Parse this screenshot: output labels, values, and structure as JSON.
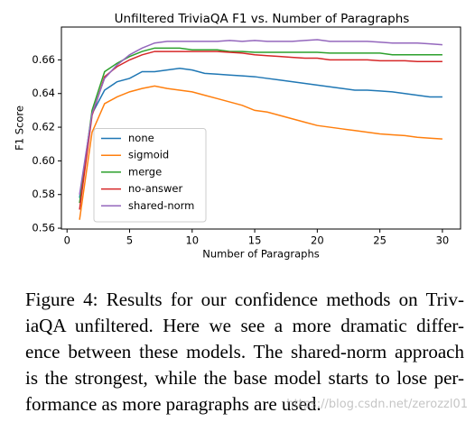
{
  "chart_data": {
    "type": "line",
    "title": "Unfiltered TriviaQA F1 vs. Number of Paragraphs",
    "x_label": "Number of Paragraphs",
    "y_label": "F1 Score",
    "x": [
      1,
      2,
      3,
      4,
      5,
      6,
      7,
      8,
      9,
      10,
      11,
      12,
      13,
      14,
      15,
      16,
      17,
      18,
      19,
      20,
      21,
      22,
      23,
      24,
      25,
      26,
      27,
      28,
      29,
      30
    ],
    "series": [
      {
        "name": "none",
        "color": "#1f77b4",
        "values": [
          0.578,
          0.628,
          0.642,
          0.647,
          0.649,
          0.653,
          0.653,
          0.654,
          0.655,
          0.654,
          0.652,
          0.6515,
          0.651,
          0.6505,
          0.65,
          0.649,
          0.648,
          0.647,
          0.646,
          0.645,
          0.644,
          0.643,
          0.642,
          0.642,
          0.6415,
          0.641,
          0.64,
          0.639,
          0.638,
          0.638
        ]
      },
      {
        "name": "sigmoid",
        "color": "#ff7f0e",
        "values": [
          0.565,
          0.617,
          0.634,
          0.638,
          0.641,
          0.643,
          0.6445,
          0.643,
          0.642,
          0.641,
          0.639,
          0.637,
          0.635,
          0.633,
          0.63,
          0.629,
          0.627,
          0.625,
          0.623,
          0.621,
          0.62,
          0.619,
          0.618,
          0.617,
          0.616,
          0.6155,
          0.615,
          0.614,
          0.6135,
          0.613
        ]
      },
      {
        "name": "merge",
        "color": "#2ca02c",
        "values": [
          0.575,
          0.63,
          0.653,
          0.658,
          0.662,
          0.665,
          0.667,
          0.667,
          0.667,
          0.666,
          0.666,
          0.666,
          0.665,
          0.665,
          0.6645,
          0.6645,
          0.6645,
          0.6645,
          0.6645,
          0.6645,
          0.664,
          0.664,
          0.664,
          0.664,
          0.664,
          0.663,
          0.663,
          0.663,
          0.663,
          0.663
        ]
      },
      {
        "name": "no-answer",
        "color": "#d62728",
        "values": [
          0.571,
          0.627,
          0.65,
          0.656,
          0.66,
          0.663,
          0.665,
          0.665,
          0.665,
          0.665,
          0.665,
          0.665,
          0.6645,
          0.664,
          0.663,
          0.6625,
          0.662,
          0.6615,
          0.661,
          0.661,
          0.66,
          0.66,
          0.66,
          0.66,
          0.6595,
          0.6595,
          0.6595,
          0.659,
          0.659,
          0.659
        ]
      },
      {
        "name": "shared-norm",
        "color": "#9467bd",
        "values": [
          0.58,
          0.628,
          0.649,
          0.657,
          0.663,
          0.667,
          0.67,
          0.671,
          0.671,
          0.671,
          0.671,
          0.671,
          0.6715,
          0.671,
          0.6715,
          0.671,
          0.671,
          0.671,
          0.6715,
          0.672,
          0.671,
          0.671,
          0.671,
          0.671,
          0.6705,
          0.67,
          0.67,
          0.67,
          0.6695,
          0.669
        ]
      }
    ],
    "xlim": [
      -0.45,
      31.45
    ],
    "ylim": [
      0.5595,
      0.6795
    ],
    "xticks": [
      0,
      5,
      10,
      15,
      20,
      25,
      30
    ],
    "yticks": [
      {
        "value": 0.56,
        "label": "0.56"
      },
      {
        "value": 0.58,
        "label": "0.58"
      },
      {
        "value": 0.6,
        "label": "0.60"
      },
      {
        "value": 0.62,
        "label": "0.62"
      },
      {
        "value": 0.64,
        "label": "0.64"
      },
      {
        "value": 0.66,
        "label": "0.66"
      }
    ],
    "legend": "lower left"
  },
  "caption": [
    "Figure 4: Results for our confidence methods on Triv-",
    "iaQA unfiltered. Here we see a more dramatic differ-",
    "ence between these models. The shared-norm approach",
    "is the strongest, while the base model starts to lose per-",
    "formance as more paragraphs are used."
  ],
  "watermark": "https://blog.csdn.net/zerozzl01"
}
